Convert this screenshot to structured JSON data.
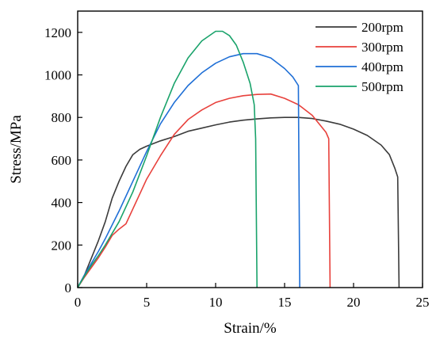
{
  "chart_data": {
    "type": "line",
    "xlabel": "Strain/%",
    "ylabel": "Stress/MPa",
    "xlim": [
      0,
      25
    ],
    "ylim": [
      0,
      1300
    ],
    "xticks": [
      0,
      5,
      10,
      15,
      20,
      25
    ],
    "yticks": [
      0,
      200,
      400,
      600,
      800,
      1000,
      1200
    ],
    "grid": false,
    "legend_position": "top-right",
    "series": [
      {
        "name": "200rpm",
        "color": "#3b3b3b",
        "points": [
          [
            0,
            0
          ],
          [
            0.5,
            60
          ],
          [
            1,
            140
          ],
          [
            1.5,
            220
          ],
          [
            2,
            310
          ],
          [
            2.5,
            420
          ],
          [
            3,
            500
          ],
          [
            3.5,
            570
          ],
          [
            4,
            625
          ],
          [
            4.5,
            650
          ],
          [
            5,
            665
          ],
          [
            6,
            690
          ],
          [
            7,
            710
          ],
          [
            8,
            735
          ],
          [
            9,
            750
          ],
          [
            10,
            765
          ],
          [
            11,
            778
          ],
          [
            12,
            787
          ],
          [
            13,
            793
          ],
          [
            14,
            798
          ],
          [
            15,
            800
          ],
          [
            16,
            800
          ],
          [
            17,
            795
          ],
          [
            18,
            783
          ],
          [
            19,
            768
          ],
          [
            20,
            745
          ],
          [
            21,
            715
          ],
          [
            22,
            670
          ],
          [
            22.6,
            625
          ],
          [
            23,
            560
          ],
          [
            23.2,
            520
          ],
          [
            23.3,
            0
          ]
        ]
      },
      {
        "name": "300rpm",
        "color": "#e8413c",
        "points": [
          [
            0,
            0
          ],
          [
            0.5,
            50
          ],
          [
            1,
            95
          ],
          [
            1.5,
            140
          ],
          [
            2,
            190
          ],
          [
            2.5,
            245
          ],
          [
            3,
            275
          ],
          [
            3.5,
            300
          ],
          [
            4,
            370
          ],
          [
            4.5,
            440
          ],
          [
            5,
            510
          ],
          [
            6,
            620
          ],
          [
            7,
            720
          ],
          [
            8,
            790
          ],
          [
            9,
            835
          ],
          [
            10,
            870
          ],
          [
            11,
            890
          ],
          [
            12,
            902
          ],
          [
            13,
            908
          ],
          [
            14,
            910
          ],
          [
            15,
            890
          ],
          [
            16,
            860
          ],
          [
            17,
            810
          ],
          [
            17.5,
            770
          ],
          [
            18,
            730
          ],
          [
            18.2,
            700
          ],
          [
            18.3,
            0
          ]
        ]
      },
      {
        "name": "400rpm",
        "color": "#1f6fd6",
        "points": [
          [
            0,
            0
          ],
          [
            0.5,
            60
          ],
          [
            1,
            115
          ],
          [
            1.5,
            170
          ],
          [
            2,
            230
          ],
          [
            3,
            360
          ],
          [
            4,
            500
          ],
          [
            5,
            640
          ],
          [
            6,
            770
          ],
          [
            7,
            870
          ],
          [
            8,
            950
          ],
          [
            9,
            1010
          ],
          [
            10,
            1055
          ],
          [
            11,
            1085
          ],
          [
            12,
            1100
          ],
          [
            13,
            1100
          ],
          [
            14,
            1080
          ],
          [
            15,
            1030
          ],
          [
            15.6,
            990
          ],
          [
            16,
            950
          ],
          [
            16.1,
            0
          ]
        ]
      },
      {
        "name": "500rpm",
        "color": "#1aa36b",
        "points": [
          [
            0,
            0
          ],
          [
            0.5,
            55
          ],
          [
            1,
            105
          ],
          [
            1.5,
            150
          ],
          [
            2,
            200
          ],
          [
            3,
            310
          ],
          [
            4,
            450
          ],
          [
            5,
            620
          ],
          [
            6,
            800
          ],
          [
            7,
            960
          ],
          [
            8,
            1080
          ],
          [
            9,
            1160
          ],
          [
            10,
            1205
          ],
          [
            10.5,
            1205
          ],
          [
            11,
            1185
          ],
          [
            11.5,
            1140
          ],
          [
            12,
            1060
          ],
          [
            12.5,
            960
          ],
          [
            12.8,
            860
          ],
          [
            12.9,
            700
          ],
          [
            13,
            0
          ]
        ]
      }
    ]
  }
}
